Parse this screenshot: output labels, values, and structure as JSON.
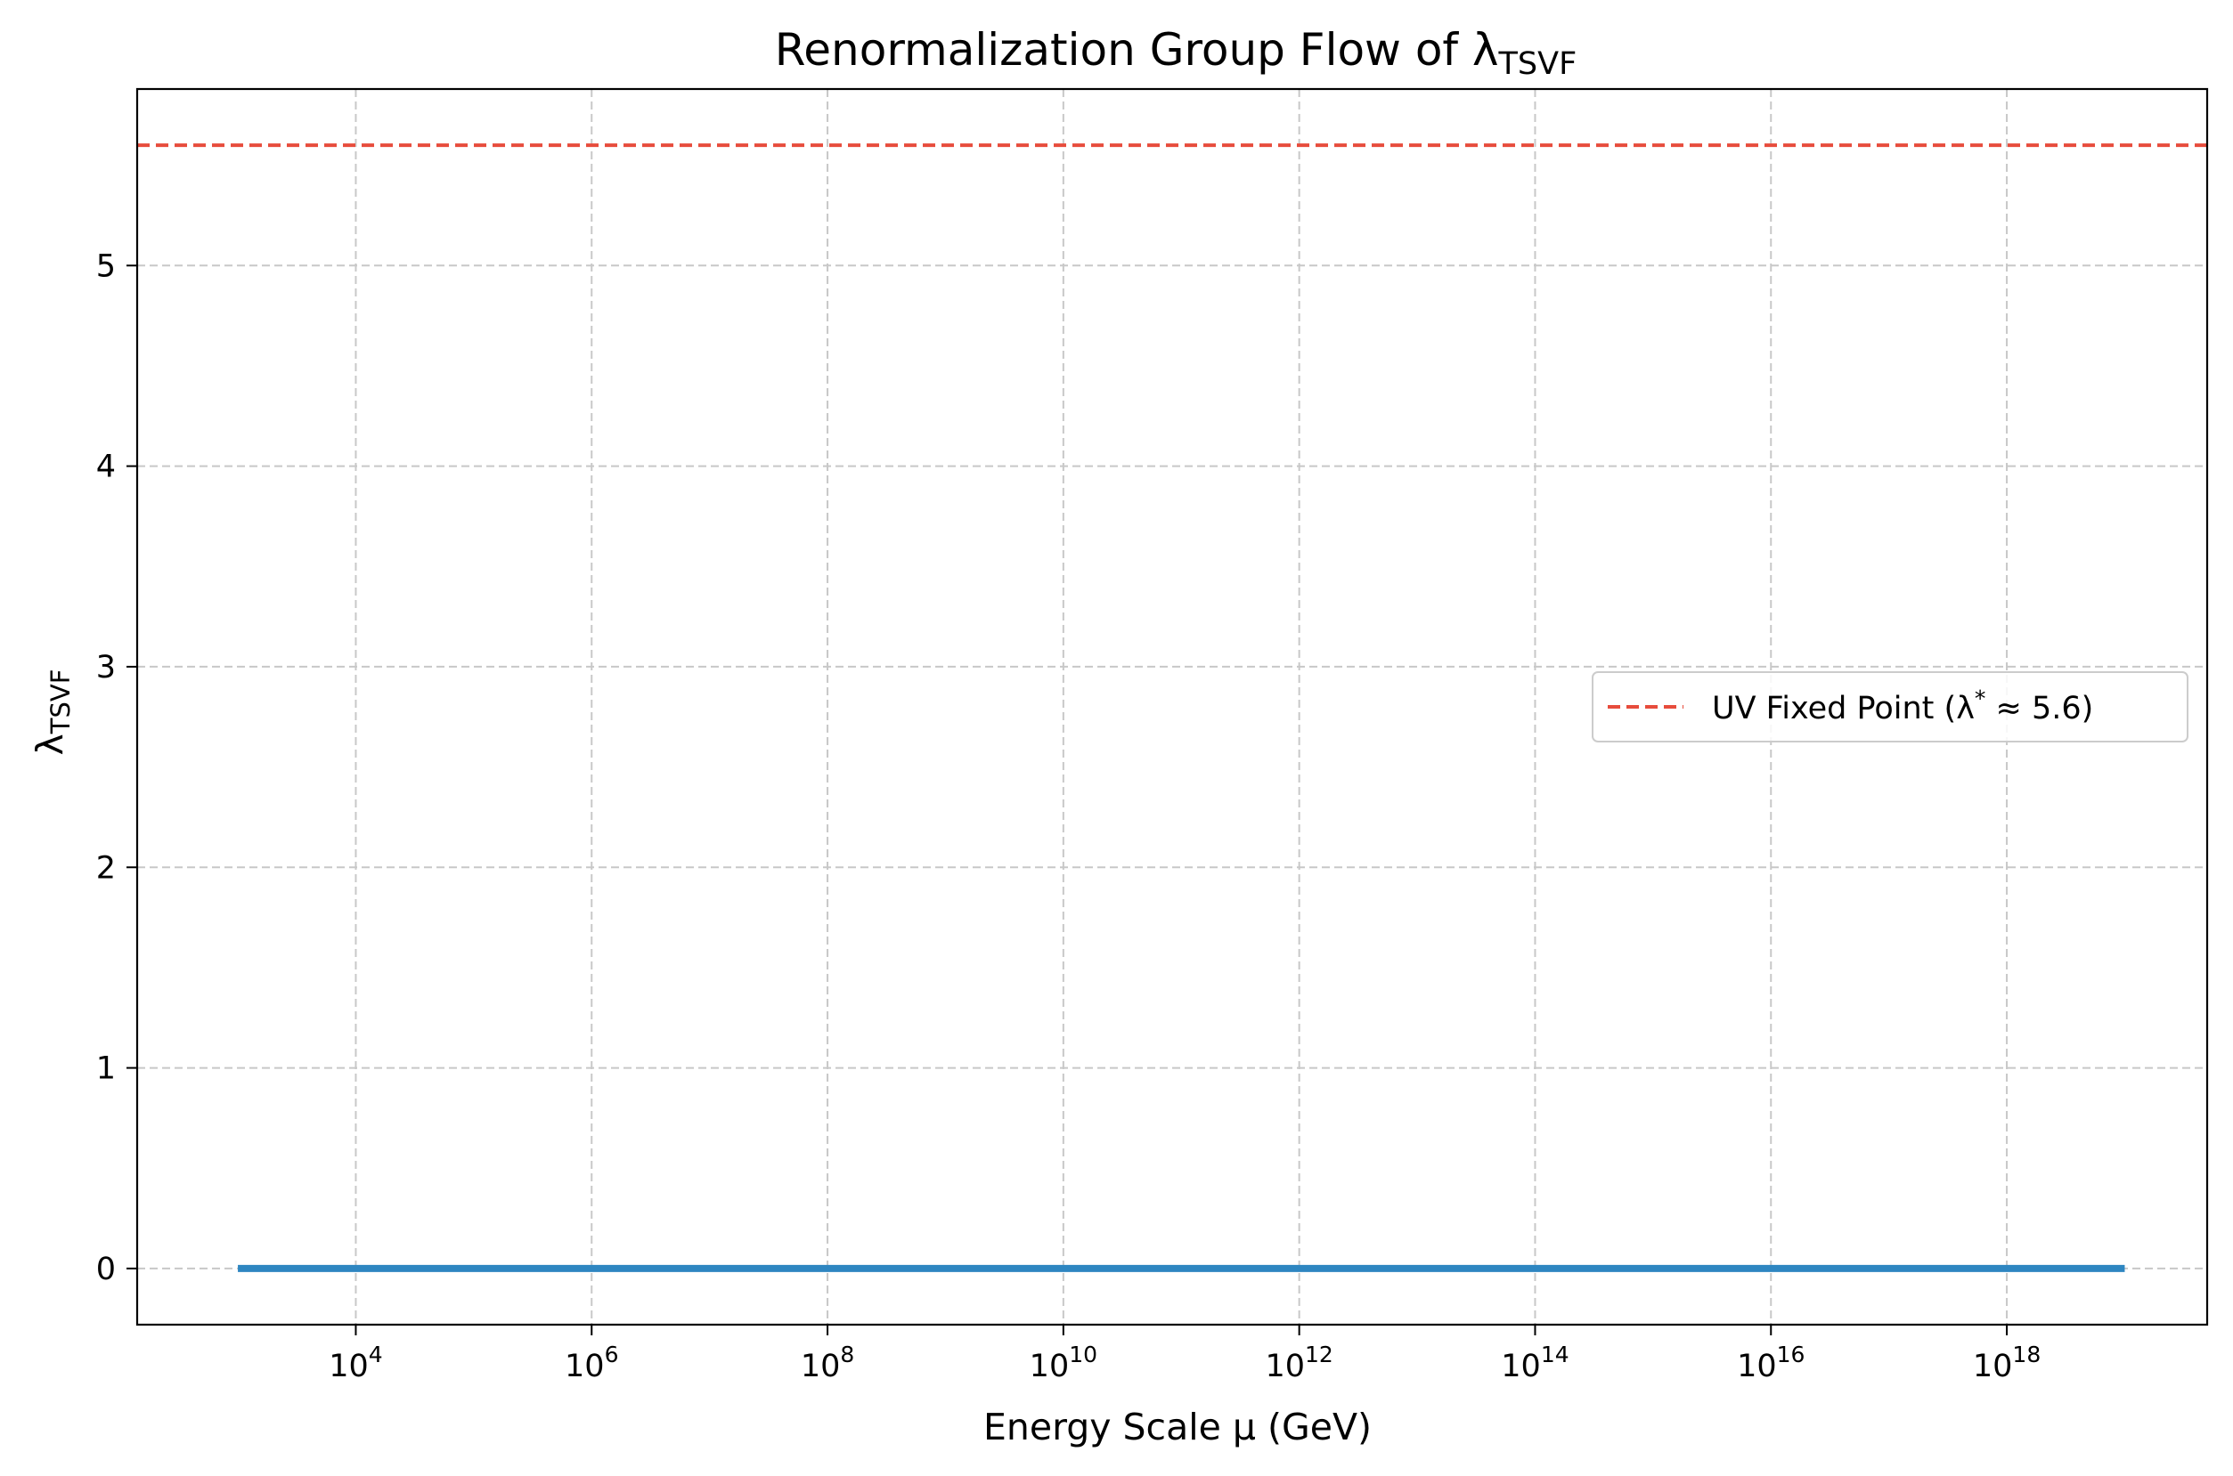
{
  "chart_data": {
    "type": "line",
    "title": "Renormalization Group Flow of λ",
    "title_subscript": "TSVF",
    "xlabel": "Energy Scale μ (GeV)",
    "ylabel": "λ",
    "ylabel_subscript": "TSVF",
    "x_scale": "log",
    "xlim": [
      140.0,
      5e+19
    ],
    "ylim": [
      -0.28,
      5.88
    ],
    "grid": true,
    "x_ticks": [
      {
        "value": 10000.0,
        "base": "10",
        "exp": "4"
      },
      {
        "value": 1000000.0,
        "base": "10",
        "exp": "6"
      },
      {
        "value": 100000000.0,
        "base": "10",
        "exp": "8"
      },
      {
        "value": 10000000000.0,
        "base": "10",
        "exp": "10"
      },
      {
        "value": 1000000000000.0,
        "base": "10",
        "exp": "12"
      },
      {
        "value": 100000000000000.0,
        "base": "10",
        "exp": "14"
      },
      {
        "value": 1e+16,
        "base": "10",
        "exp": "16"
      },
      {
        "value": 1e+18,
        "base": "10",
        "exp": "18"
      }
    ],
    "y_ticks": [
      {
        "value": 0,
        "label": "0"
      },
      {
        "value": 1,
        "label": "1"
      },
      {
        "value": 2,
        "label": "2"
      },
      {
        "value": 3,
        "label": "3"
      },
      {
        "value": 4,
        "label": "4"
      },
      {
        "value": 5,
        "label": "5"
      }
    ],
    "series": [
      {
        "color": "#2e86c1",
        "style": "solid",
        "x": [
          1000.0,
          1e+19
        ],
        "y": [
          0,
          0
        ]
      }
    ],
    "reference_lines": [
      {
        "name": "UV Fixed Point (λ* ≈ 5.6)",
        "legend_prefix": "UV Fixed Point (λ",
        "legend_sup": "*",
        "legend_suffix": " ≈ 5.6)",
        "y": 5.6,
        "color": "#e74c3c",
        "style": "dashed"
      }
    ],
    "legend_position": "center-right"
  }
}
